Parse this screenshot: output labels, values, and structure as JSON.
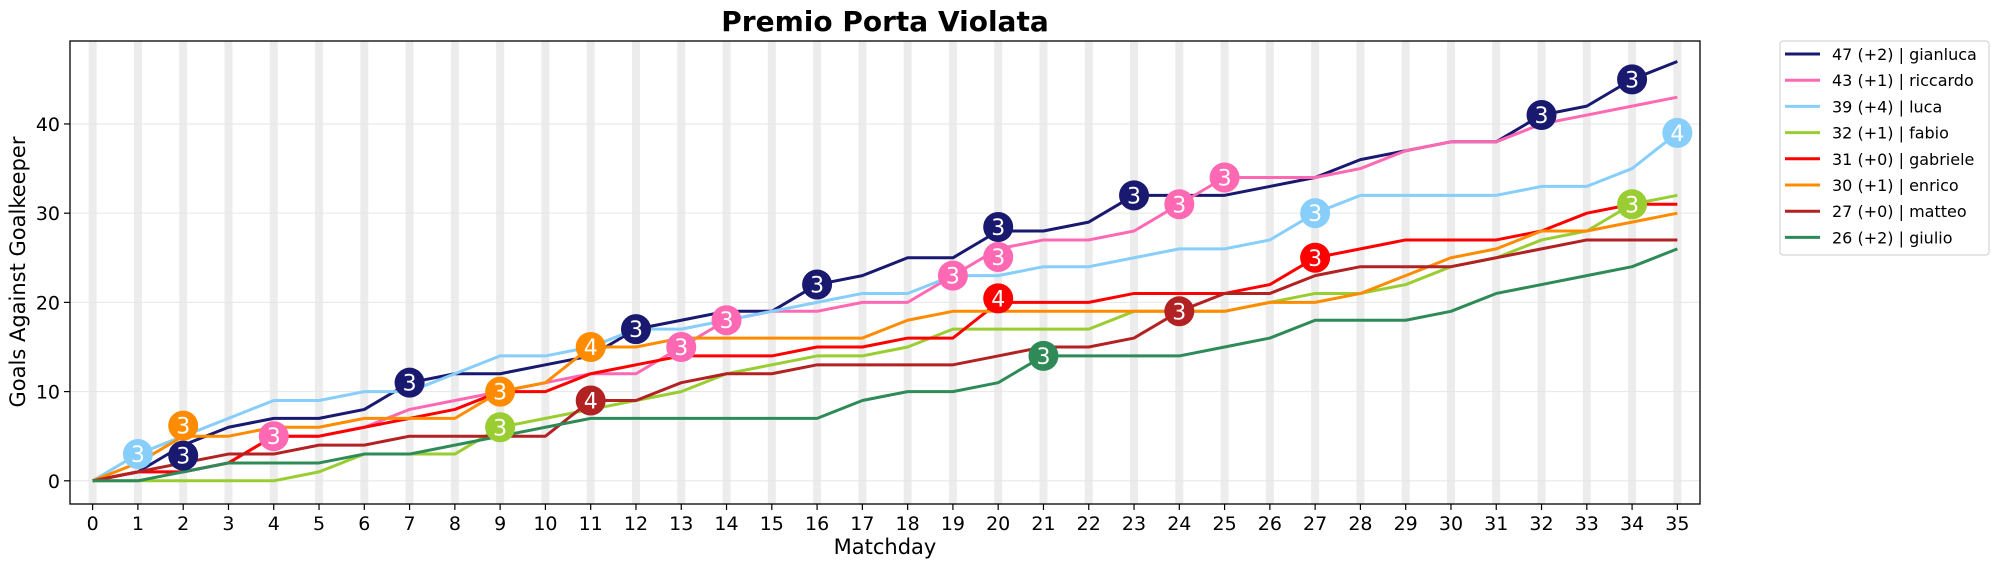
{
  "chart_data": {
    "type": "line",
    "title": "Premio Porta Violata",
    "xlabel": "Matchday",
    "ylabel": "Goals Against Goalkeeper",
    "xlim": [
      -0.5,
      35.5
    ],
    "ylim": [
      -2.6,
      49.3
    ],
    "x": [
      0,
      1,
      2,
      3,
      4,
      5,
      6,
      7,
      8,
      9,
      10,
      11,
      12,
      13,
      14,
      15,
      16,
      17,
      18,
      19,
      20,
      21,
      22,
      23,
      24,
      25,
      26,
      27,
      28,
      29,
      30,
      31,
      32,
      33,
      34,
      35
    ],
    "yticks": [
      0,
      10,
      20,
      30,
      40
    ],
    "grid": true,
    "legend_placement": "outside-top-right",
    "series": [
      {
        "name": "gianluca",
        "legend": "47 (+2) | gianluca",
        "color": "#191970",
        "values": [
          0,
          1,
          4,
          6,
          7,
          7,
          8,
          11,
          12,
          12,
          13,
          14,
          17,
          18,
          19,
          19,
          22,
          23,
          25,
          25,
          28,
          28,
          29,
          32,
          32,
          32,
          33,
          34,
          36,
          37,
          38,
          38,
          41,
          42,
          45,
          47
        ],
        "markers": [
          {
            "x": 2,
            "label": "3"
          },
          {
            "x": 7,
            "label": "3"
          },
          {
            "x": 12,
            "label": "3"
          },
          {
            "x": 16,
            "label": "3"
          },
          {
            "x": 20,
            "label": "3"
          },
          {
            "x": 23,
            "label": "3"
          },
          {
            "x": 32,
            "label": "3"
          },
          {
            "x": 34,
            "label": "3"
          }
        ]
      },
      {
        "name": "riccardo",
        "legend": "43 (+1) | riccardo",
        "color": "#ff69b4",
        "values": [
          0,
          1,
          1,
          2,
          5,
          5,
          6,
          8,
          9,
          10,
          11,
          12,
          12,
          15,
          18,
          19,
          19,
          20,
          20,
          23,
          26,
          27,
          27,
          28,
          31,
          34,
          34,
          34,
          35,
          37,
          38,
          38,
          40,
          41,
          42,
          43
        ],
        "markers": [
          {
            "x": 4,
            "label": "3"
          },
          {
            "x": 13,
            "label": "3"
          },
          {
            "x": 14,
            "label": "3"
          },
          {
            "x": 19,
            "label": "3"
          },
          {
            "x": 20,
            "label": "3"
          },
          {
            "x": 24,
            "label": "3"
          },
          {
            "x": 25,
            "label": "3"
          }
        ]
      },
      {
        "name": "luca",
        "legend": "39 (+4) | luca",
        "color": "#87cefa",
        "values": [
          0,
          3,
          5,
          7,
          9,
          9,
          10,
          10,
          12,
          14,
          14,
          15,
          17,
          17,
          18,
          19,
          20,
          21,
          21,
          23,
          23,
          24,
          24,
          25,
          26,
          26,
          27,
          30,
          32,
          32,
          32,
          32,
          33,
          33,
          35,
          39
        ],
        "markers": [
          {
            "x": 1,
            "label": "3"
          },
          {
            "x": 27,
            "label": "3"
          },
          {
            "x": 35,
            "label": "4"
          }
        ]
      },
      {
        "name": "fabio",
        "legend": "32 (+1) | fabio",
        "color": "#9acd32",
        "values": [
          0,
          0,
          0,
          0,
          0,
          1,
          3,
          3,
          3,
          6,
          7,
          8,
          9,
          10,
          12,
          13,
          14,
          14,
          15,
          17,
          17,
          17,
          17,
          19,
          19,
          19,
          20,
          21,
          21,
          22,
          24,
          25,
          27,
          28,
          31,
          32
        ],
        "markers": [
          {
            "x": 9,
            "label": "3"
          },
          {
            "x": 34,
            "label": "3"
          }
        ]
      },
      {
        "name": "gabriele",
        "legend": "31 (+0) | gabriele",
        "color": "#ff0000",
        "values": [
          0,
          1,
          1,
          2,
          5,
          5,
          6,
          7,
          8,
          10,
          10,
          12,
          13,
          14,
          14,
          14,
          15,
          15,
          16,
          16,
          20,
          20,
          20,
          21,
          21,
          21,
          22,
          25,
          26,
          27,
          27,
          27,
          28,
          30,
          31,
          31
        ],
        "markers": [
          {
            "x": 20,
            "label": "4"
          },
          {
            "x": 27,
            "label": "3"
          }
        ]
      },
      {
        "name": "enrico",
        "legend": "30 (+1) | enrico",
        "color": "#ff8c00",
        "values": [
          0,
          2,
          5,
          5,
          6,
          6,
          7,
          7,
          7,
          10,
          11,
          15,
          15,
          16,
          16,
          16,
          16,
          16,
          18,
          19,
          19,
          19,
          19,
          19,
          19,
          19,
          20,
          20,
          21,
          23,
          25,
          26,
          28,
          28,
          29,
          30
        ],
        "markers": [
          {
            "x": 2,
            "label": "3"
          },
          {
            "x": 9,
            "label": "3"
          },
          {
            "x": 11,
            "label": "4"
          }
        ]
      },
      {
        "name": "matteo",
        "legend": "27 (+0) | matteo",
        "color": "#b22222",
        "values": [
          0,
          1,
          2,
          3,
          3,
          4,
          4,
          5,
          5,
          5,
          5,
          9,
          9,
          11,
          12,
          12,
          13,
          13,
          13,
          13,
          14,
          15,
          15,
          16,
          19,
          21,
          21,
          23,
          24,
          24,
          24,
          25,
          26,
          27,
          27,
          27
        ],
        "markers": [
          {
            "x": 11,
            "label": "4"
          },
          {
            "x": 24,
            "label": "3"
          }
        ]
      },
      {
        "name": "giulio",
        "legend": "26 (+2) | giulio",
        "color": "#2e8b57",
        "values": [
          0,
          0,
          1,
          2,
          2,
          2,
          3,
          3,
          4,
          5,
          6,
          7,
          7,
          7,
          7,
          7,
          7,
          9,
          10,
          10,
          11,
          14,
          14,
          14,
          14,
          15,
          16,
          18,
          18,
          18,
          19,
          21,
          22,
          23,
          24,
          26
        ],
        "markers": [
          {
            "x": 21,
            "label": "3"
          }
        ]
      }
    ]
  }
}
